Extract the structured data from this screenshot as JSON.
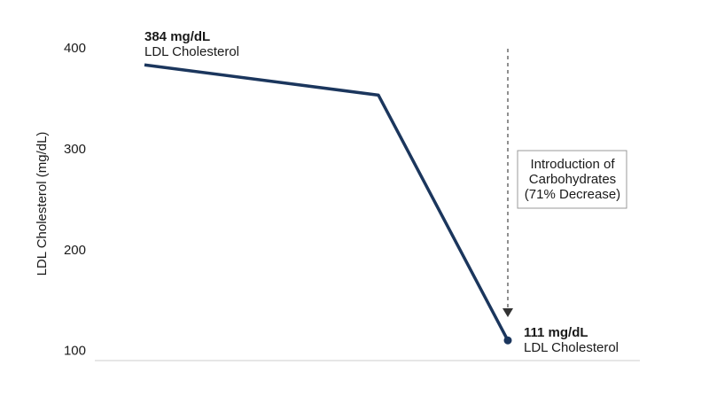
{
  "chart_data": {
    "type": "line",
    "y_label": "LDL Cholesterol (mg/dL)",
    "categories": [
      null,
      null,
      null
    ],
    "values": [
      384,
      354,
      111
    ],
    "value_labels": [
      "384 mg/dL",
      null,
      "111 mg/dL"
    ],
    "point_notes": [
      "LDL Cholesterol",
      null,
      "LDL Cholesterol"
    ],
    "annotation": [
      "Introduction of",
      "Carbohydrates",
      "(71% Decrease)"
    ],
    "color": "#1b365d",
    "ylim": [
      91,
      400
    ],
    "yticks": [
      100,
      200,
      300,
      400
    ],
    "grid": false
  }
}
